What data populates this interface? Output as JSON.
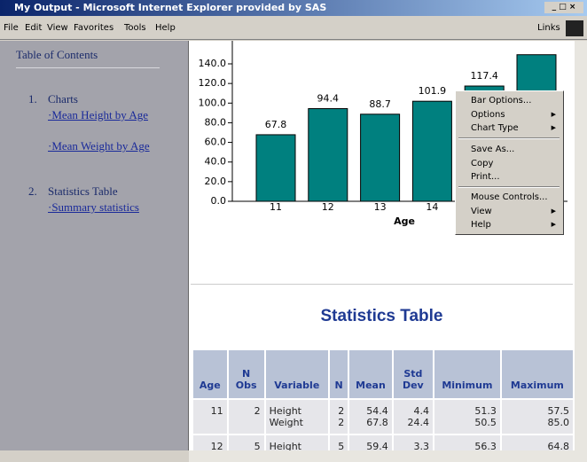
{
  "window": {
    "title": "My Output - Microsoft Internet Explorer provided by SAS"
  },
  "menubar": {
    "items": [
      "File",
      "Edit",
      "View",
      "Favorites",
      "Tools",
      "Help"
    ],
    "links": "Links"
  },
  "toc": {
    "title": "Table of Contents",
    "sections": [
      {
        "number": "1.",
        "label": "Charts",
        "links": [
          "·Mean Height by Age",
          "·Mean Weight by Age"
        ]
      },
      {
        "number": "2.",
        "label": "Statistics Table",
        "links": [
          "·Summary statistics"
        ]
      }
    ]
  },
  "chart": {
    "type": "bar",
    "x_label": "Age",
    "categories": [
      "11",
      "12",
      "13",
      "14",
      null,
      null
    ],
    "values": [
      67.8,
      94.4,
      88.7,
      101.9,
      117.4,
      149.3
    ],
    "value_labels": [
      "67.8",
      "94.4",
      "88.7",
      "101.9",
      "117.4",
      null
    ],
    "color": "#00807f",
    "ylim": [
      0,
      140
    ],
    "yticks": [
      {
        "value": 0,
        "label": "0.0"
      },
      {
        "value": 20,
        "label": "20.0"
      },
      {
        "value": 40,
        "label": "40.0"
      },
      {
        "value": 60,
        "label": "60.0"
      },
      {
        "value": 80,
        "label": "80.0"
      },
      {
        "value": 100,
        "label": "100.0"
      },
      {
        "value": 120,
        "label": "120.0"
      },
      {
        "value": 140,
        "label": "140.0"
      }
    ]
  },
  "context_menu": {
    "items": [
      "Bar Options...",
      "Options",
      "Chart Type",
      "Save As...",
      "Copy",
      "Print...",
      "Mouse Controls...",
      "View",
      "Help"
    ]
  },
  "stats": {
    "heading": "Statistics Table",
    "columns": [
      "Age",
      "N Obs",
      "Variable",
      "N",
      "Mean",
      "Std Dev",
      "Minimum",
      "Maximum"
    ],
    "rows": [
      {
        "age": "11",
        "nobs": "2",
        "stats": [
          {
            "variable": "Height",
            "n": "2",
            "mean": "54.4",
            "std": "4.4",
            "min": "51.3",
            "max": "57.5"
          },
          {
            "variable": "Weight",
            "n": "2",
            "mean": "67.8",
            "std": "24.4",
            "min": "50.5",
            "max": "85.0"
          }
        ]
      },
      {
        "age": "12",
        "nobs": "5",
        "stats": [
          {
            "variable": "Height",
            "n": "5",
            "mean": "59.4",
            "std": "3.3",
            "min": "56.3",
            "max": "64.8"
          }
        ]
      }
    ]
  }
}
